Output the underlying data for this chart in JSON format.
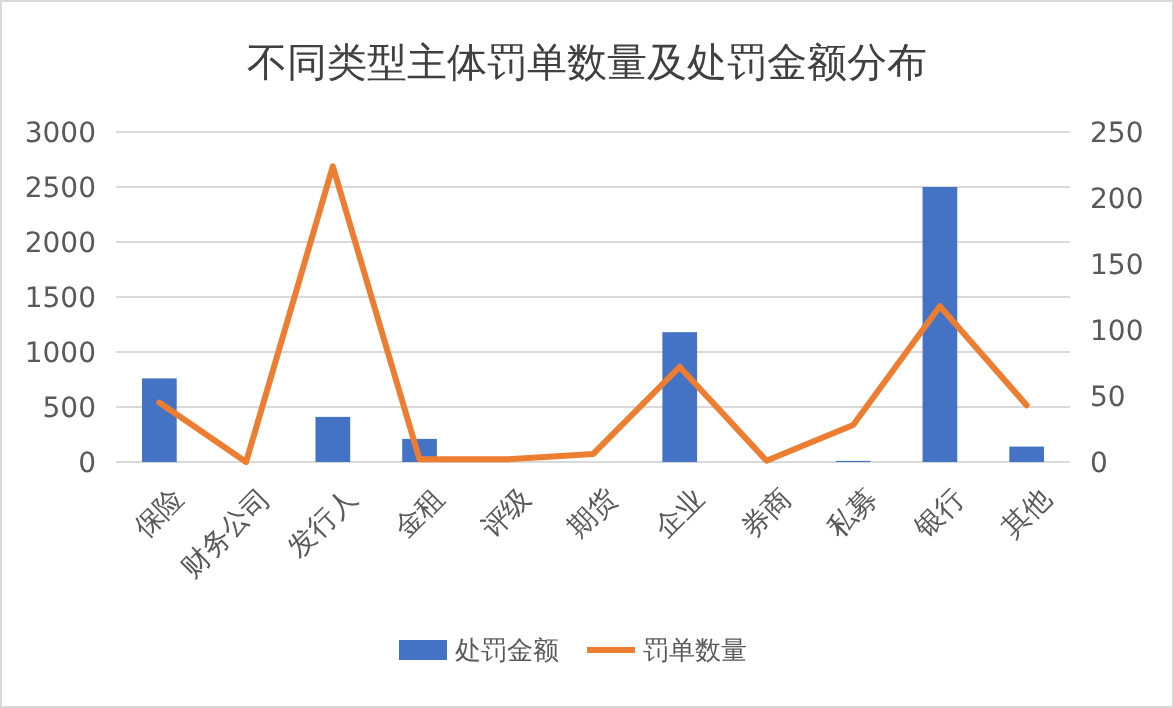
{
  "chart_data": {
    "type": "bar",
    "title": "不同类型主体罚单数量及处罚金额分布",
    "categories": [
      "保险",
      "财务公司",
      "发行人",
      "金租",
      "评级",
      "期货",
      "企业",
      "券商",
      "私募",
      "银行",
      "其他"
    ],
    "series": [
      {
        "name": "处罚金额",
        "color": "#4472c4",
        "values": [
          760,
          0,
          410,
          210,
          0,
          0,
          1180,
          0,
          10,
          2500,
          140
        ]
      },
      {
        "name": "罚单数量",
        "type": "line",
        "axis": "y2",
        "color": "#ed7d31",
        "values": [
          45,
          0,
          224,
          2,
          2,
          6,
          72,
          1,
          28,
          118,
          43
        ]
      }
    ],
    "ylim": [
      0,
      3000
    ],
    "yticks": [
      0,
      500,
      1000,
      1500,
      2000,
      2500,
      3000
    ],
    "y2lim": [
      0,
      250
    ],
    "y2ticks": [
      0,
      50,
      100,
      150,
      200,
      250
    ],
    "grid": "y",
    "legend": "bottom",
    "marker": "none"
  }
}
